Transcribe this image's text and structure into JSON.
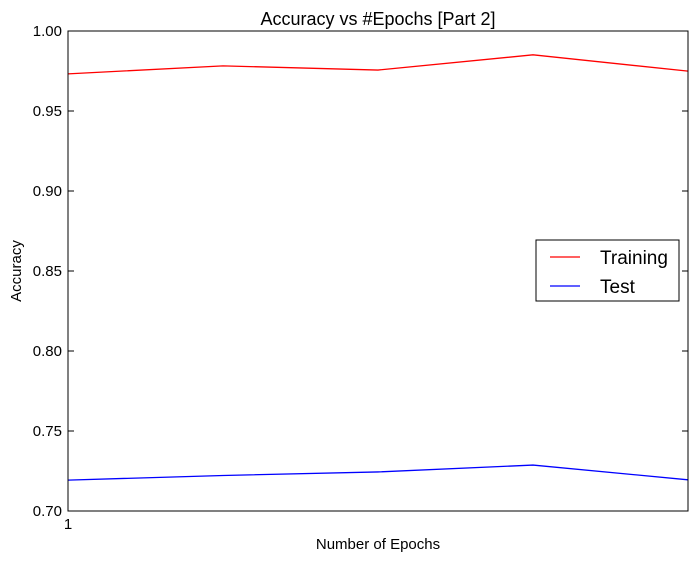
{
  "chart_data": {
    "type": "line",
    "title": "Accuracy vs #Epochs [Part 2]",
    "xlabel": "Number of Epochs",
    "ylabel": "Accuracy",
    "x": [
      1,
      2,
      3,
      4,
      5
    ],
    "x_tick_labels": [
      "1"
    ],
    "xlim": [
      1,
      5
    ],
    "ylim": [
      0.7,
      1.0
    ],
    "y_ticks": [
      "0.70",
      "0.75",
      "0.80",
      "0.85",
      "0.90",
      "0.95",
      "1.00"
    ],
    "grid": false,
    "legend_position": "center-right",
    "series": [
      {
        "name": "Training",
        "color": "#ff0000",
        "values": [
          0.9732,
          0.9782,
          0.9756,
          0.9851,
          0.9749
        ]
      },
      {
        "name": "Test",
        "color": "#0000ff",
        "values": [
          0.7193,
          0.7222,
          0.7244,
          0.7287,
          0.7195
        ]
      }
    ]
  }
}
